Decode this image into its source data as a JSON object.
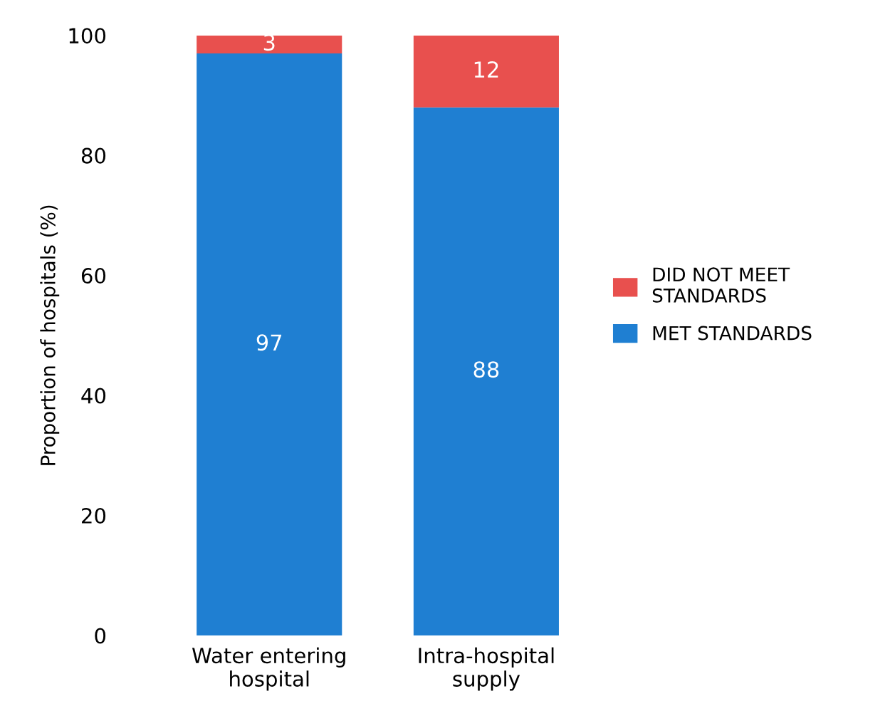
{
  "chart_data": {
    "type": "bar",
    "stacked": true,
    "ylabel": "Proportion of hospitals (%)",
    "categories": [
      "Water entering\nhospital",
      "Intra-hospital\nsupply"
    ],
    "series": [
      {
        "name": "MET STANDARDS",
        "color": "#1f7fd2",
        "values": [
          97,
          88
        ]
      },
      {
        "name": "DID NOT MEET\nSTANDARDS",
        "color": "#e8504e",
        "values": [
          3,
          12
        ]
      }
    ],
    "ylim": [
      0,
      100
    ],
    "yticks": [
      0,
      20,
      40,
      60,
      80,
      100
    ],
    "data_labels": true,
    "legend": "right",
    "grid": false
  }
}
